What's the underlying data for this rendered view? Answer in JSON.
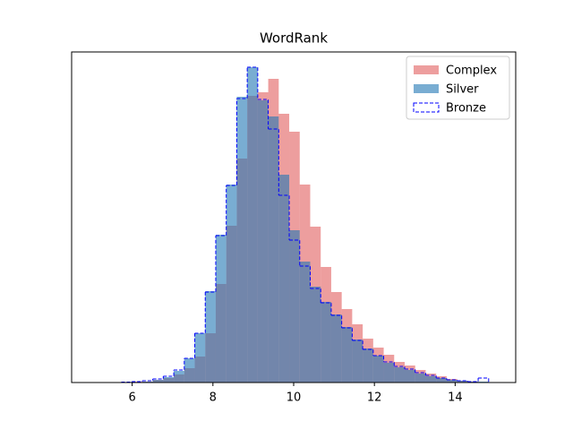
{
  "chart_data": {
    "type": "histogram",
    "title": "WordRank",
    "bins": [
      4.95,
      5.21,
      5.47,
      5.73,
      5.99,
      6.25,
      6.51,
      6.77,
      7.03,
      7.29,
      7.55,
      7.81,
      8.07,
      8.33,
      8.59,
      8.85,
      9.11,
      9.37,
      9.63,
      9.89,
      10.15,
      10.41,
      10.67,
      10.93,
      11.19,
      11.45,
      11.71,
      11.97,
      12.23,
      12.49,
      12.75,
      13.01,
      13.27,
      13.53,
      13.79,
      14.05,
      14.31,
      14.57,
      14.83
    ],
    "series": [
      {
        "name": "Complex",
        "color": "#d62728",
        "opacity": 0.45,
        "style": "filled",
        "values": [
          0,
          0,
          0,
          0,
          1,
          1,
          3,
          5,
          9,
          16,
          29,
          55,
          110,
          175,
          250,
          320,
          324,
          339,
          300,
          280,
          221,
          174,
          129,
          101,
          82,
          65,
          49,
          39,
          31,
          23,
          19,
          14,
          10,
          7,
          4,
          2,
          1,
          0
        ]
      },
      {
        "name": "Silver",
        "color": "#1f77b4",
        "opacity": 0.6,
        "style": "filled",
        "values": [
          0,
          0,
          0,
          0,
          0,
          1,
          3,
          6,
          13,
          27,
          55,
          102,
          165,
          221,
          319,
          352,
          315,
          297,
          232,
          170,
          135,
          107,
          90,
          76,
          62,
          48,
          38,
          30,
          22,
          17,
          14,
          10,
          7,
          5,
          3,
          2,
          1,
          1
        ]
      },
      {
        "name": "Bronze",
        "color": "#0000ff",
        "opacity": 1,
        "style": "step-dashed",
        "values": [
          0,
          0,
          0,
          0.5,
          1,
          2,
          4,
          7,
          14,
          27,
          55,
          101,
          164,
          220,
          317,
          352,
          316,
          283,
          209,
          159,
          130,
          105,
          89,
          75,
          61,
          47,
          37,
          30,
          23,
          18,
          15,
          11,
          8,
          5,
          3,
          2,
          1,
          5
        ]
      }
    ],
    "xlim": [
      4.5,
      15.5
    ],
    "ylim": [
      0,
      369
    ],
    "xticks": [
      6,
      8,
      10,
      12,
      14
    ],
    "legend": "upper right"
  }
}
